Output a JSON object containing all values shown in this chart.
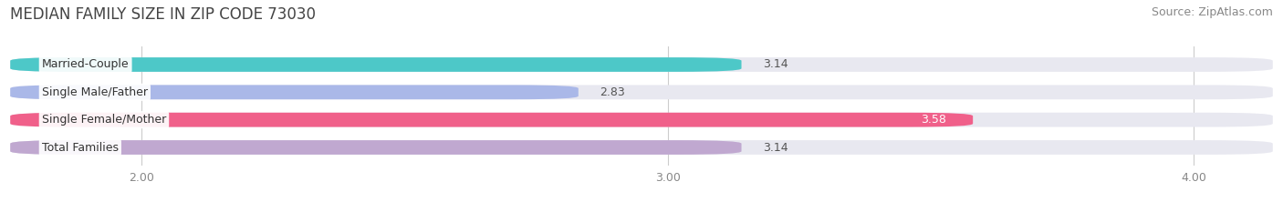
{
  "title": "MEDIAN FAMILY SIZE IN ZIP CODE 73030",
  "source": "Source: ZipAtlas.com",
  "categories": [
    "Married-Couple",
    "Single Male/Father",
    "Single Female/Mother",
    "Total Families"
  ],
  "values": [
    3.14,
    2.83,
    3.58,
    3.14
  ],
  "bar_colors": [
    "#4dc8c8",
    "#aab8e8",
    "#f0608a",
    "#c0a8d0"
  ],
  "bar_label_colors": [
    "#444444",
    "#444444",
    "#ffffff",
    "#444444"
  ],
  "value_inside": [
    false,
    false,
    true,
    false
  ],
  "xlim_min": 1.75,
  "xlim_max": 4.15,
  "xticks": [
    2.0,
    3.0,
    4.0
  ],
  "xtick_labels": [
    "2.00",
    "3.00",
    "4.00"
  ],
  "background_color": "#ffffff",
  "bar_bg_color": "#e8e8f0",
  "title_fontsize": 12,
  "source_fontsize": 9,
  "label_fontsize": 9,
  "value_fontsize": 9,
  "tick_fontsize": 9,
  "bar_height": 0.52,
  "bar_gap": 1.0
}
